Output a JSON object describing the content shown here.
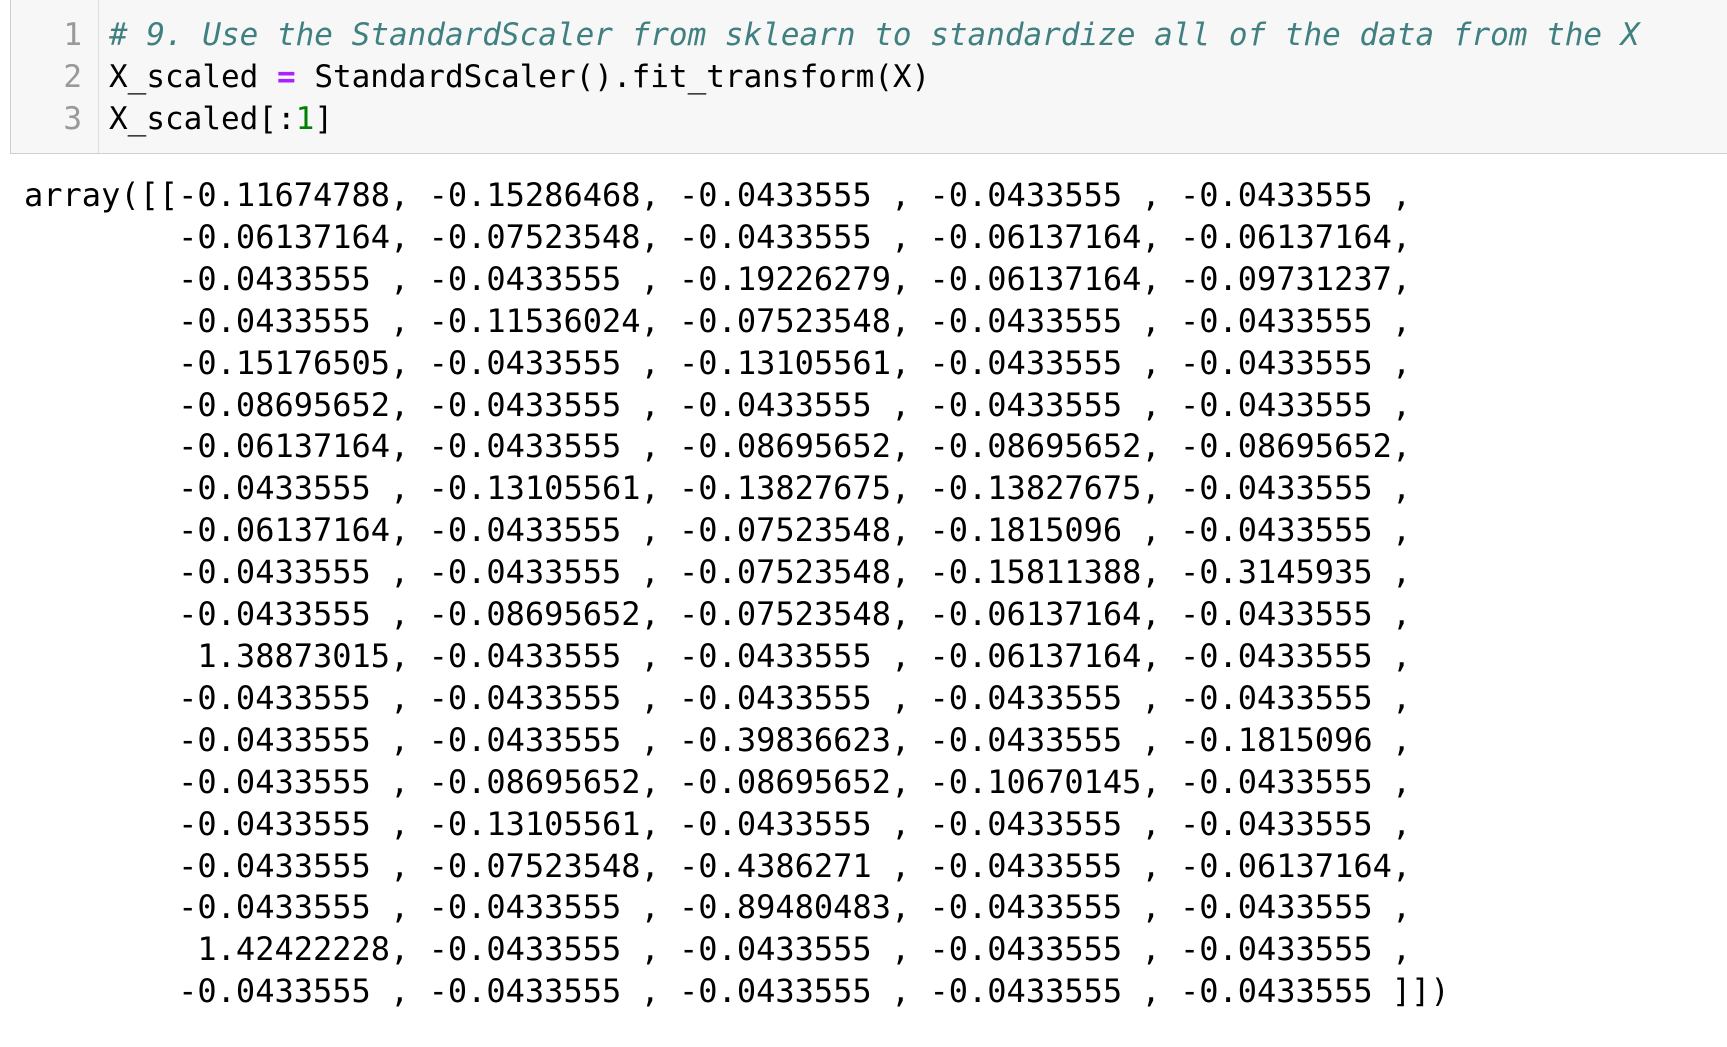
{
  "input_cell": {
    "line_numbers": [
      "1",
      "2",
      "3"
    ],
    "line1_comment": "# 9. Use the StandardScaler from sklearn to standardize all of the data from the X",
    "line2_var": "X_scaled ",
    "line2_op": "=",
    "line2_rest": " StandardScaler().fit_transform(X)",
    "line3_pre": "X_scaled[:",
    "line3_num": "1",
    "line3_post": "]"
  },
  "output_cell": {
    "lines": [
      "array([[-0.11674788, -0.15286468, -0.0433555 , -0.0433555 , -0.0433555 ,",
      "        -0.06137164, -0.07523548, -0.0433555 , -0.06137164, -0.06137164,",
      "        -0.0433555 , -0.0433555 , -0.19226279, -0.06137164, -0.09731237,",
      "        -0.0433555 , -0.11536024, -0.07523548, -0.0433555 , -0.0433555 ,",
      "        -0.15176505, -0.0433555 , -0.13105561, -0.0433555 , -0.0433555 ,",
      "        -0.08695652, -0.0433555 , -0.0433555 , -0.0433555 , -0.0433555 ,",
      "        -0.06137164, -0.0433555 , -0.08695652, -0.08695652, -0.08695652,",
      "        -0.0433555 , -0.13105561, -0.13827675, -0.13827675, -0.0433555 ,",
      "        -0.06137164, -0.0433555 , -0.07523548, -0.1815096 , -0.0433555 ,",
      "        -0.0433555 , -0.0433555 , -0.07523548, -0.15811388, -0.3145935 ,",
      "        -0.0433555 , -0.08695652, -0.07523548, -0.06137164, -0.0433555 ,",
      "         1.38873015, -0.0433555 , -0.0433555 , -0.06137164, -0.0433555 ,",
      "        -0.0433555 , -0.0433555 , -0.0433555 , -0.0433555 , -0.0433555 ,",
      "        -0.0433555 , -0.0433555 , -0.39836623, -0.0433555 , -0.1815096 ,",
      "        -0.0433555 , -0.08695652, -0.08695652, -0.10670145, -0.0433555 ,",
      "        -0.0433555 , -0.13105561, -0.0433555 , -0.0433555 , -0.0433555 ,",
      "        -0.0433555 , -0.07523548, -0.4386271 , -0.0433555 , -0.06137164,",
      "        -0.0433555 , -0.0433555 , -0.89480483, -0.0433555 , -0.0433555 ,",
      "         1.42422228, -0.0433555 , -0.0433555 , -0.0433555 , -0.0433555 ,",
      "        -0.0433555 , -0.0433555 , -0.0433555 , -0.0433555 , -0.0433555 ]])"
    ]
  }
}
